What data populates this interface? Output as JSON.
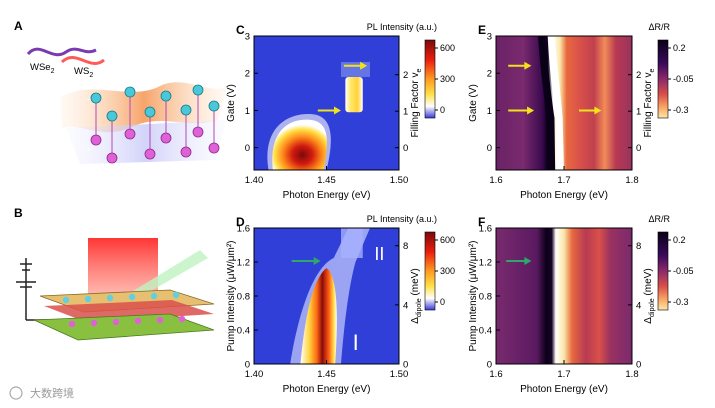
{
  "panels": {
    "a": {
      "label": "A",
      "layer_top": "WSe",
      "layer_top_sub": "2",
      "layer_bottom": "WS",
      "layer_bottom_sub": "2",
      "charge_neg": "−",
      "charge_pos": "+"
    },
    "b": {
      "label": "B"
    },
    "c": {
      "label": "C"
    },
    "d": {
      "label": "D"
    },
    "e": {
      "label": "E"
    },
    "f": {
      "label": "F"
    }
  },
  "chart_data": [
    {
      "id": "C",
      "type": "heatmap",
      "title": "PL Intensity (a.u.)",
      "xlabel": "Photon Energy (eV)",
      "xlim": [
        1.4,
        1.5
      ],
      "xticks": [
        "1.40",
        "1.45",
        "1.50"
      ],
      "ylabel": "Gate (V)",
      "ylim": [
        -0.6,
        3.0
      ],
      "yticks": [
        "0",
        "1",
        "2",
        "3"
      ],
      "y2label": "Filling Factor",
      "y2label_sub": "e",
      "y2label_var": "v",
      "y2ticks": [
        "0",
        "1",
        "2"
      ],
      "colorbar": {
        "ticks": [
          "600",
          "300",
          "0"
        ],
        "colors": [
          "#7a0a0a",
          "#e81c10",
          "#ff9a1f",
          "#ffe24a",
          "#ffffff",
          "#3a3ad8"
        ]
      },
      "annotations": [
        "arrow pointing to filling factor 2 PL",
        "arrow pointing to filling factor 1 PL"
      ]
    },
    {
      "id": "D",
      "type": "heatmap",
      "title": "PL Intensity (a.u.)",
      "xlabel": "Photon Energy (eV)",
      "xlim": [
        1.4,
        1.5
      ],
      "xticks": [
        "1.40",
        "1.45",
        "1.50"
      ],
      "ylabel": "Pump Intensity (μW/μm²)",
      "yticks": [
        "0",
        "0.4",
        "0.8",
        "1.2",
        "1.6"
      ],
      "y2label": "Δ",
      "y2label_sub": "dipole",
      "y2label_unit": " (meV)",
      "y2ticks": [
        "0",
        "4",
        "8"
      ],
      "colorbar": {
        "ticks": [
          "600",
          "300",
          "0"
        ],
        "colors": [
          "#7a0a0a",
          "#e81c10",
          "#ff9a1f",
          "#ffe24a",
          "#ffffff",
          "#3a3ad8"
        ]
      },
      "region_labels": [
        "I",
        "II"
      ]
    },
    {
      "id": "E",
      "type": "heatmap",
      "title": "ΔR/R",
      "xlabel": "Photon Energy (eV)",
      "xlim": [
        1.6,
        1.8
      ],
      "xticks": [
        "1.6",
        "1.7",
        "1.8"
      ],
      "ylabel": "Gate (V)",
      "ylim": [
        -0.6,
        3.0
      ],
      "yticks": [
        "0",
        "1",
        "2",
        "3"
      ],
      "y2label": "Filling Factor",
      "y2label_sub": "e",
      "y2label_var": "v",
      "y2ticks": [
        "0",
        "1",
        "2"
      ],
      "colorbar": {
        "ticks": [
          "0.2",
          "-0.05",
          "-0.3"
        ],
        "colors": [
          "#0a0018",
          "#3b0a5a",
          "#8a2a6a",
          "#d9504a",
          "#f8a060",
          "#fbe7a8"
        ]
      }
    },
    {
      "id": "F",
      "type": "heatmap",
      "title": "ΔR/R",
      "xlabel": "Photon Energy (eV)",
      "xlim": [
        1.6,
        1.8
      ],
      "xticks": [
        "1.6",
        "1.7",
        "1.8"
      ],
      "ylabel": "Pump Intensity (μW/μm²)",
      "yticks": [
        "0",
        "0.4",
        "0.8",
        "1.2",
        "1.6"
      ],
      "y2label": "Δ",
      "y2label_sub": "dipole",
      "y2label_unit": " (meV)",
      "y2ticks": [
        "0",
        "4",
        "8"
      ],
      "colorbar": {
        "ticks": [
          "0.2",
          "-0.05",
          "-0.3"
        ],
        "colors": [
          "#0a0018",
          "#3b0a5a",
          "#8a2a6a",
          "#d9504a",
          "#f8a060",
          "#fbe7a8"
        ]
      }
    }
  ],
  "watermark": {
    "text": "大数跨境"
  },
  "colors": {
    "arrow_yellow": "#f2e21a",
    "arrow_green": "#2ea86a",
    "pl_bg": "#2f3fd8",
    "refl_bg": "#7a2a72"
  }
}
